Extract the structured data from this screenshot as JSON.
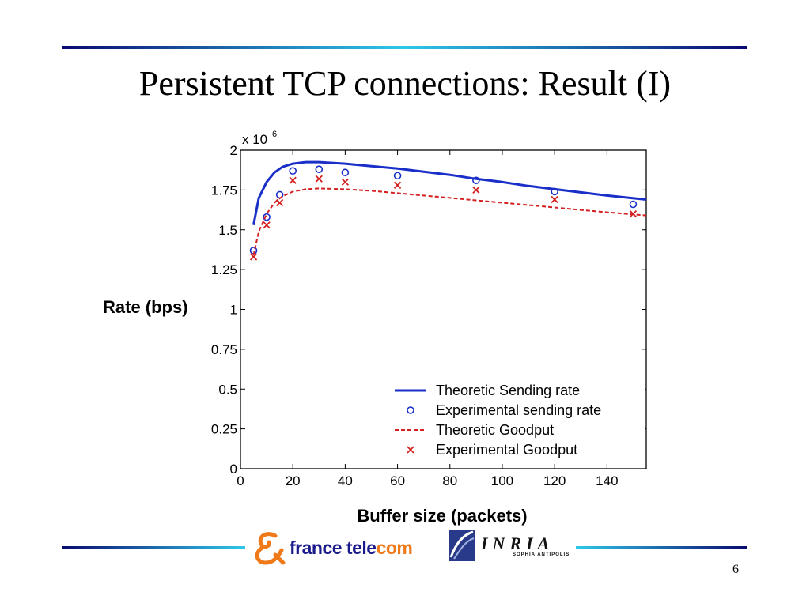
{
  "slide": {
    "title": "Persistent TCP connections: Result (I)",
    "page_number": "6",
    "ylabel": "Rate (bps)",
    "xlabel": "Buffer size (packets)",
    "logos": {
      "france_telecom": "france telecom",
      "inria": "INRIA",
      "inria_sub": "SOPHIA ANTIPOLIS"
    },
    "colors": {
      "rule_dark": "#0a0a70",
      "rule_light": "#2ec8e8",
      "brand_orange": "#f07a1a",
      "brand_blue": "#1a1a8c"
    }
  },
  "chart_data": {
    "type": "line",
    "title": "",
    "xlabel": "Buffer size (packets)",
    "ylabel": "Rate (bps)",
    "exponent_label": "x 10",
    "exponent_power": "6",
    "xlim": [
      0,
      155
    ],
    "ylim": [
      0,
      2
    ],
    "x_ticks": [
      0,
      20,
      40,
      60,
      80,
      100,
      120,
      140
    ],
    "x_tick_labels": [
      "0",
      "20",
      "40",
      "60",
      "80",
      "100",
      "120",
      "140"
    ],
    "y_ticks": [
      0,
      0.25,
      0.5,
      0.75,
      1,
      1.25,
      1.5,
      1.75,
      2
    ],
    "y_tick_labels": [
      "0",
      "0.25",
      "0.5",
      "0.75",
      "1",
      "1.25",
      "1.5",
      "1.75",
      "2"
    ],
    "grid": false,
    "legend_position": "bottom-right",
    "series": [
      {
        "name": "Theoretic Sending rate",
        "style": "solid-line",
        "color": "#1a2ec8",
        "x": [
          5,
          7,
          10,
          13,
          16,
          20,
          25,
          30,
          40,
          50,
          60,
          70,
          80,
          90,
          100,
          110,
          120,
          130,
          140,
          155
        ],
        "y": [
          1.53,
          1.7,
          1.8,
          1.86,
          1.895,
          1.915,
          1.925,
          1.925,
          1.915,
          1.9,
          1.885,
          1.865,
          1.845,
          1.82,
          1.8,
          1.775,
          1.755,
          1.735,
          1.715,
          1.69
        ]
      },
      {
        "name": "Experimental sending rate",
        "style": "circle-marker",
        "color": "#1a2ec8",
        "x": [
          5,
          10,
          15,
          20,
          30,
          40,
          60,
          90,
          120,
          150
        ],
        "y": [
          1.37,
          1.58,
          1.72,
          1.87,
          1.88,
          1.86,
          1.84,
          1.81,
          1.74,
          1.66
        ]
      },
      {
        "name": "Theoretic Goodput",
        "style": "dashed-line",
        "color": "#d42020",
        "x": [
          5,
          7,
          10,
          13,
          16,
          20,
          25,
          30,
          40,
          50,
          60,
          70,
          80,
          90,
          100,
          110,
          120,
          130,
          140,
          155
        ],
        "y": [
          1.34,
          1.49,
          1.6,
          1.67,
          1.71,
          1.74,
          1.755,
          1.76,
          1.755,
          1.745,
          1.73,
          1.715,
          1.7,
          1.685,
          1.67,
          1.655,
          1.64,
          1.625,
          1.61,
          1.59
        ]
      },
      {
        "name": "Experimental Goodput",
        "style": "x-marker",
        "color": "#d42020",
        "x": [
          5,
          10,
          15,
          20,
          30,
          40,
          60,
          90,
          120,
          150
        ],
        "y": [
          1.33,
          1.53,
          1.67,
          1.81,
          1.82,
          1.8,
          1.78,
          1.75,
          1.69,
          1.6
        ]
      }
    ]
  }
}
